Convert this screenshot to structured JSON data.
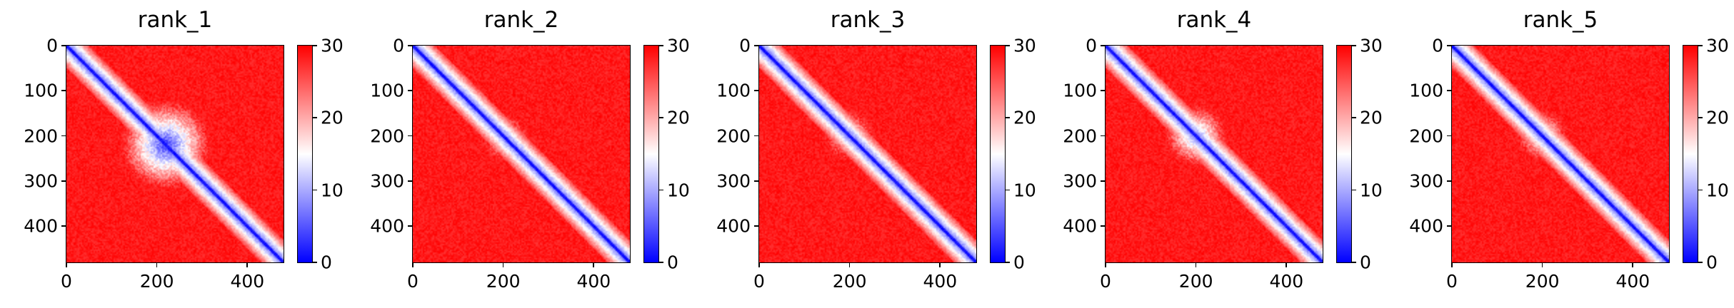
{
  "figure": {
    "colormap": [
      "#0000ff",
      "#ffffff",
      "#ff0000"
    ]
  },
  "chart_data": [
    {
      "type": "heatmap",
      "title": "rank_1",
      "xlim": [
        0,
        480
      ],
      "ylim": [
        480,
        0
      ],
      "xticks": [
        "0",
        "200",
        "400"
      ],
      "yticks": [
        "0",
        "100",
        "200",
        "300",
        "400"
      ],
      "colorbar": {
        "range": [
          0,
          30
        ],
        "ticks": [
          "0",
          "10",
          "20",
          "30"
        ]
      },
      "diagonal_value": 0,
      "blue_clusters": [
        {
          "x_range": [
            120,
            320
          ],
          "y_range": [
            120,
            320
          ],
          "min_value": 0
        }
      ]
    },
    {
      "type": "heatmap",
      "title": "rank_2",
      "xlim": [
        0,
        480
      ],
      "ylim": [
        480,
        0
      ],
      "xticks": [
        "0",
        "200",
        "400"
      ],
      "yticks": [
        "0",
        "100",
        "200",
        "300",
        "400"
      ],
      "colorbar": {
        "range": [
          0,
          30
        ],
        "ticks": [
          "0",
          "10",
          "20",
          "30"
        ]
      },
      "diagonal_value": 0,
      "blue_clusters": [
        {
          "x_range": [
            150,
            260
          ],
          "y_range": [
            150,
            260
          ],
          "min_value": 12
        }
      ]
    },
    {
      "type": "heatmap",
      "title": "rank_3",
      "xlim": [
        0,
        480
      ],
      "ylim": [
        480,
        0
      ],
      "xticks": [
        "0",
        "200",
        "400"
      ],
      "yticks": [
        "0",
        "100",
        "200",
        "300",
        "400"
      ],
      "colorbar": {
        "range": [
          0,
          30
        ],
        "ticks": [
          "0",
          "10",
          "20",
          "30"
        ]
      },
      "diagonal_value": 0,
      "blue_clusters": [
        {
          "x_range": [
            140,
            260
          ],
          "y_range": [
            140,
            260
          ],
          "min_value": 12
        }
      ]
    },
    {
      "type": "heatmap",
      "title": "rank_4",
      "xlim": [
        0,
        480
      ],
      "ylim": [
        480,
        0
      ],
      "xticks": [
        "0",
        "200",
        "400"
      ],
      "yticks": [
        "0",
        "100",
        "200",
        "300",
        "400"
      ],
      "colorbar": {
        "range": [
          0,
          30
        ],
        "ticks": [
          "0",
          "10",
          "20",
          "30"
        ]
      },
      "diagonal_value": 0,
      "blue_clusters": [
        {
          "x_range": [
            130,
            270
          ],
          "y_range": [
            130,
            270
          ],
          "min_value": 6
        }
      ]
    },
    {
      "type": "heatmap",
      "title": "rank_5",
      "xlim": [
        0,
        480
      ],
      "ylim": [
        480,
        0
      ],
      "xticks": [
        "0",
        "200",
        "400"
      ],
      "yticks": [
        "0",
        "100",
        "200",
        "300",
        "400"
      ],
      "colorbar": {
        "range": [
          0,
          30
        ],
        "ticks": [
          "0",
          "10",
          "20",
          "30"
        ]
      },
      "diagonal_value": 0,
      "blue_clusters": [
        {
          "x_range": [
            140,
            260
          ],
          "y_range": [
            140,
            260
          ],
          "min_value": 10
        }
      ]
    }
  ]
}
